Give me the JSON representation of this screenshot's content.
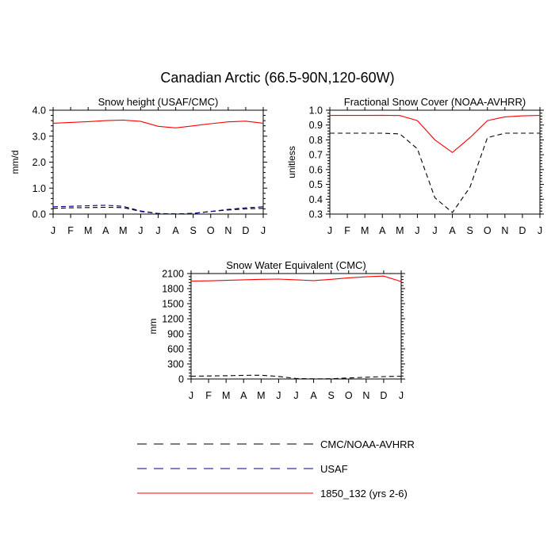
{
  "figure": {
    "title": "Canadian Arctic (66.5-90N,120-60W)"
  },
  "chart_data": [
    {
      "type": "line",
      "title": "Snow height (USAF/CMC)",
      "xlabel": "",
      "ylabel": "mm/d",
      "ylim": [
        0,
        4
      ],
      "yticks": [
        "0.0",
        "1.0",
        "2.0",
        "3.0",
        "4.0"
      ],
      "categories": [
        "J",
        "F",
        "M",
        "A",
        "M",
        "J",
        "J",
        "A",
        "S",
        "O",
        "N",
        "D",
        "J"
      ],
      "series": [
        {
          "name": "CMC/NOAA-AVHRR",
          "color": "#000000",
          "dash": "dashed",
          "values": [
            0.22,
            0.24,
            0.25,
            0.26,
            0.25,
            0.1,
            0.02,
            0.0,
            0.03,
            0.1,
            0.16,
            0.2,
            0.22
          ]
        },
        {
          "name": "USAF",
          "color": "#00008b",
          "dash": "dashed",
          "values": [
            0.28,
            0.3,
            0.32,
            0.34,
            0.3,
            0.12,
            0.02,
            0.01,
            0.02,
            0.1,
            0.18,
            0.24,
            0.28
          ]
        },
        {
          "name": "1850_132 (yrs 2-6)",
          "color": "#ff0000",
          "dash": "solid",
          "values": [
            3.5,
            3.53,
            3.56,
            3.6,
            3.62,
            3.57,
            3.38,
            3.32,
            3.4,
            3.48,
            3.55,
            3.58,
            3.5
          ]
        }
      ]
    },
    {
      "type": "line",
      "title": "Fractional Snow Cover (NOAA-AVHRR)",
      "xlabel": "",
      "ylabel": "unitless",
      "ylim": [
        0.3,
        1.0
      ],
      "yticks": [
        "0.3",
        "0.4",
        "0.5",
        "0.6",
        "0.7",
        "0.8",
        "0.9",
        "1.0"
      ],
      "categories": [
        "J",
        "F",
        "M",
        "A",
        "M",
        "J",
        "J",
        "A",
        "S",
        "O",
        "N",
        "D",
        "J"
      ],
      "series": [
        {
          "name": "CMC/NOAA-AVHRR",
          "color": "#000000",
          "dash": "dashed",
          "values": [
            0.845,
            0.845,
            0.845,
            0.845,
            0.84,
            0.74,
            0.41,
            0.31,
            0.48,
            0.815,
            0.845,
            0.845,
            0.845
          ]
        },
        {
          "name": "1850_132 (yrs 2-6)",
          "color": "#ff0000",
          "dash": "solid",
          "values": [
            0.965,
            0.965,
            0.965,
            0.966,
            0.964,
            0.93,
            0.8,
            0.715,
            0.815,
            0.93,
            0.955,
            0.962,
            0.965
          ]
        }
      ]
    },
    {
      "type": "line",
      "title": "Snow Water Equivalent (CMC)",
      "xlabel": "",
      "ylabel": "mm",
      "ylim": [
        0,
        2100
      ],
      "yticks": [
        "0",
        "300",
        "600",
        "900",
        "1200",
        "1500",
        "1800",
        "2100"
      ],
      "categories": [
        "J",
        "F",
        "M",
        "A",
        "M",
        "J",
        "J",
        "A",
        "S",
        "O",
        "N",
        "D",
        "J"
      ],
      "series": [
        {
          "name": "CMC/NOAA-AVHRR",
          "color": "#000000",
          "dash": "dashed",
          "values": [
            55,
            60,
            65,
            72,
            75,
            50,
            10,
            3,
            5,
            20,
            35,
            48,
            55
          ]
        },
        {
          "name": "1850_132 (yrs 2-6)",
          "color": "#ff0000",
          "dash": "solid",
          "values": [
            1950,
            1955,
            1965,
            1975,
            1985,
            1990,
            1975,
            1960,
            1985,
            2015,
            2035,
            2050,
            1940
          ]
        }
      ]
    }
  ],
  "legend": {
    "placement": "bottom-center",
    "entries": [
      {
        "label": "CMC/NOAA-AVHRR",
        "color": "#000000",
        "dash": "dashed"
      },
      {
        "label": "USAF",
        "color": "#00008b",
        "dash": "dashed"
      },
      {
        "label": "1850_132 (yrs 2-6)",
        "color": "#ff0000",
        "dash": "solid"
      }
    ]
  }
}
